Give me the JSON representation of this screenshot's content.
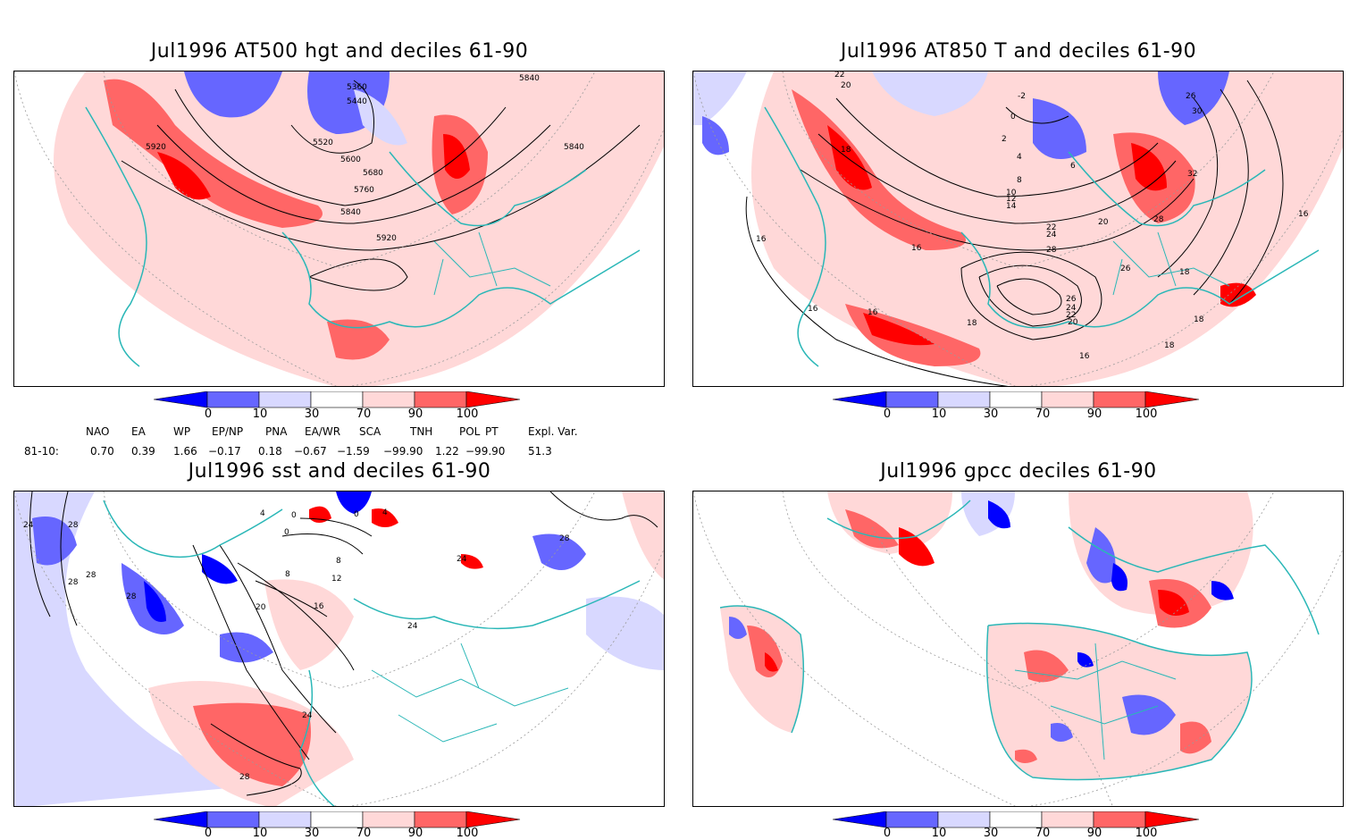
{
  "panels": [
    {
      "title": "Jul1996 AT500 hgt and deciles 61-90",
      "contour_labels": [
        "5360",
        "5440",
        "5520",
        "5600",
        "5680",
        "5760",
        "5840",
        "5840",
        "5840",
        "5920",
        "5920"
      ]
    },
    {
      "title": "Jul1996 AT850 T and deciles 61-90",
      "contour_labels": [
        "22",
        "20",
        "18",
        "16",
        "16",
        "16",
        "18",
        "18",
        "18",
        "18",
        "16",
        "16",
        "16",
        "26",
        "24",
        "22",
        "20",
        "28",
        "26",
        "24",
        "22",
        "20",
        "14",
        "12",
        "10",
        "8",
        "6",
        "4",
        "2",
        "0",
        "-2",
        "30",
        "26",
        "32",
        "28"
      ]
    },
    {
      "title": "Jul1996 sst and deciles 61-90",
      "contour_labels": [
        "24",
        "28",
        "28",
        "28",
        "28",
        "4",
        "0",
        "0",
        "0",
        "4",
        "8",
        "8",
        "12",
        "16",
        "20",
        "24",
        "24",
        "24",
        "28",
        "28"
      ]
    },
    {
      "title": "Jul1996 gpcc deciles 61-90",
      "contour_labels": []
    }
  ],
  "colorbar": {
    "tick_labels": [
      "0",
      "10",
      "30",
      "70",
      "90",
      "100"
    ],
    "colors": [
      "#0000ff",
      "#6666ff",
      "#d8d8ff",
      "#ffffff",
      "#ffd8d8",
      "#ff6666",
      "#ff0000"
    ]
  },
  "indices": {
    "headers": [
      "NAO",
      "EA",
      "WP",
      "EP/NP",
      "PNA",
      "EA/WR",
      "SCA",
      "TNH",
      "POL",
      "PT",
      "Expl. Var."
    ],
    "row_label": "81-10:",
    "values": [
      "0.70",
      "0.39",
      "1.66",
      "−0.17",
      "0.18",
      "−0.67",
      "−1.59",
      "−99.90",
      "1.22",
      "−99.90",
      "51.3"
    ]
  },
  "map_colors": {
    "coast": "#2ab7b7",
    "grid": "#9a9a9a",
    "contour": "#000000",
    "red": "#ff6666",
    "lightred": "#ffd8d8",
    "blue": "#6666ff",
    "lightblue": "#d8d8ff",
    "deepred": "#ff0000",
    "deepblue": "#0000ff"
  }
}
